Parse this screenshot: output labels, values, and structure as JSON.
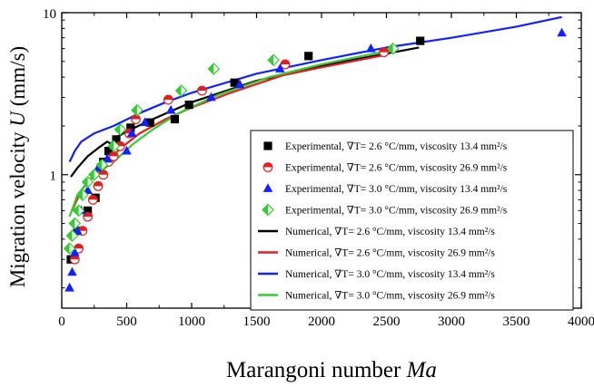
{
  "chart_data": {
    "type": "scatter",
    "xlabel": "Marangoni number",
    "xlabel_symbol": "Ma",
    "ylabel": "Migration velocity",
    "ylabel_symbol": "U",
    "ylabel_unit": "(mm/s)",
    "xlim": [
      0,
      4000
    ],
    "ylim": [
      0.15,
      10
    ],
    "y_scale": "log",
    "x_ticks": [
      0,
      500,
      1000,
      1500,
      2000,
      2500,
      3000,
      3500,
      4000
    ],
    "y_ticks": [
      1,
      10
    ],
    "grid": false,
    "legend_position": "right-center",
    "series": [
      {
        "name": "Experimental, ∇T= 2.6 °C/mm, viscosity 13.4 mm²/s",
        "kind": "markers",
        "marker": "square",
        "color": "#000000",
        "points": [
          [
            70,
            0.3
          ],
          [
            120,
            0.45
          ],
          [
            200,
            0.6
          ],
          [
            260,
            0.72
          ],
          [
            320,
            1.2
          ],
          [
            360,
            1.4
          ],
          [
            420,
            1.65
          ],
          [
            530,
            1.95
          ],
          [
            680,
            2.1
          ],
          [
            870,
            2.2
          ],
          [
            980,
            2.7
          ],
          [
            1330,
            3.7
          ],
          [
            1900,
            5.4
          ],
          [
            2760,
            6.7
          ]
        ]
      },
      {
        "name": "Experimental, ∇T= 2.6 °C/mm, viscosity 26.9 mm²/s",
        "kind": "markers",
        "marker": "half-circle",
        "color": "#e02020",
        "points": [
          [
            100,
            0.3
          ],
          [
            130,
            0.35
          ],
          [
            160,
            0.45
          ],
          [
            200,
            0.55
          ],
          [
            240,
            0.7
          ],
          [
            280,
            0.85
          ],
          [
            320,
            1.0
          ],
          [
            360,
            1.2
          ],
          [
            400,
            1.3
          ],
          [
            450,
            1.5
          ],
          [
            520,
            1.8
          ],
          [
            570,
            2.2
          ],
          [
            820,
            2.9
          ],
          [
            1080,
            3.3
          ],
          [
            1720,
            4.8
          ],
          [
            2480,
            5.7
          ]
        ]
      },
      {
        "name": "Experimental, ∇T= 3.0 °C/mm, viscosity 13.4 mm²/s",
        "kind": "markers",
        "marker": "triangle",
        "color": "#1020ff",
        "points": [
          [
            60,
            0.2
          ],
          [
            80,
            0.25
          ],
          [
            100,
            0.33
          ],
          [
            120,
            0.45
          ],
          [
            150,
            0.6
          ],
          [
            200,
            0.8
          ],
          [
            280,
            1.1
          ],
          [
            350,
            1.25
          ],
          [
            500,
            1.4
          ],
          [
            540,
            1.8
          ],
          [
            640,
            2.1
          ],
          [
            840,
            2.5
          ],
          [
            1150,
            3.0
          ],
          [
            1370,
            3.6
          ],
          [
            1680,
            4.5
          ],
          [
            2380,
            6.0
          ],
          [
            3850,
            7.5
          ]
        ]
      },
      {
        "name": "Experimental, ∇T= 3.0 °C/mm, viscosity 26.9 mm²/s",
        "kind": "markers",
        "marker": "half-diamond",
        "color": "#33cc33",
        "points": [
          [
            60,
            0.35
          ],
          [
            80,
            0.42
          ],
          [
            100,
            0.5
          ],
          [
            130,
            0.6
          ],
          [
            160,
            0.75
          ],
          [
            200,
            0.9
          ],
          [
            250,
            1.0
          ],
          [
            310,
            1.15
          ],
          [
            400,
            1.5
          ],
          [
            450,
            1.9
          ],
          [
            580,
            2.5
          ],
          [
            920,
            3.3
          ],
          [
            1170,
            4.5
          ],
          [
            1630,
            5.1
          ],
          [
            2550,
            6.0
          ]
        ]
      },
      {
        "name": "Numerical, ∇T= 2.6 °C/mm, viscosity 13.4 mm²/s",
        "kind": "line",
        "color": "#000000",
        "points": [
          [
            70,
            0.97
          ],
          [
            120,
            1.1
          ],
          [
            200,
            1.3
          ],
          [
            300,
            1.5
          ],
          [
            350,
            1.6
          ],
          [
            380,
            1.55
          ],
          [
            420,
            1.7
          ],
          [
            500,
            1.85
          ],
          [
            700,
            2.2
          ],
          [
            1000,
            2.8
          ],
          [
            1500,
            3.8
          ],
          [
            2000,
            4.7
          ],
          [
            2750,
            6.1
          ]
        ]
      },
      {
        "name": "Numerical, ∇T= 2.6 °C/mm, viscosity 26.9 mm²/s",
        "kind": "line",
        "color": "#e02020",
        "points": [
          [
            80,
            0.6
          ],
          [
            150,
            0.8
          ],
          [
            250,
            1.0
          ],
          [
            350,
            1.2
          ],
          [
            450,
            1.45
          ],
          [
            600,
            1.8
          ],
          [
            800,
            2.2
          ],
          [
            1000,
            2.6
          ],
          [
            1300,
            3.2
          ],
          [
            1700,
            4.1
          ],
          [
            2000,
            4.6
          ],
          [
            2500,
            5.5
          ]
        ]
      },
      {
        "name": "Numerical, ∇T= 3.0 °C/mm, viscosity 13.4 mm²/s",
        "kind": "line",
        "color": "#1020ff",
        "points": [
          [
            60,
            1.2
          ],
          [
            100,
            1.4
          ],
          [
            150,
            1.6
          ],
          [
            250,
            1.8
          ],
          [
            400,
            2.0
          ],
          [
            600,
            2.4
          ],
          [
            800,
            2.8
          ],
          [
            1000,
            3.2
          ],
          [
            1500,
            4.2
          ],
          [
            2000,
            5.1
          ],
          [
            2500,
            6.1
          ],
          [
            3000,
            7.0
          ],
          [
            3500,
            8.2
          ],
          [
            3850,
            9.4
          ]
        ]
      },
      {
        "name": "Numerical, ∇T= 3.0 °C/mm, viscosity 26.9 mm²/s",
        "kind": "line",
        "color": "#33cc33",
        "points": [
          [
            60,
            0.55
          ],
          [
            120,
            0.75
          ],
          [
            200,
            0.9
          ],
          [
            300,
            1.05
          ],
          [
            400,
            1.2
          ],
          [
            550,
            1.55
          ],
          [
            700,
            1.9
          ],
          [
            900,
            2.4
          ],
          [
            1200,
            3.1
          ],
          [
            1600,
            4.0
          ],
          [
            2000,
            4.8
          ],
          [
            2550,
            5.9
          ]
        ]
      }
    ]
  }
}
